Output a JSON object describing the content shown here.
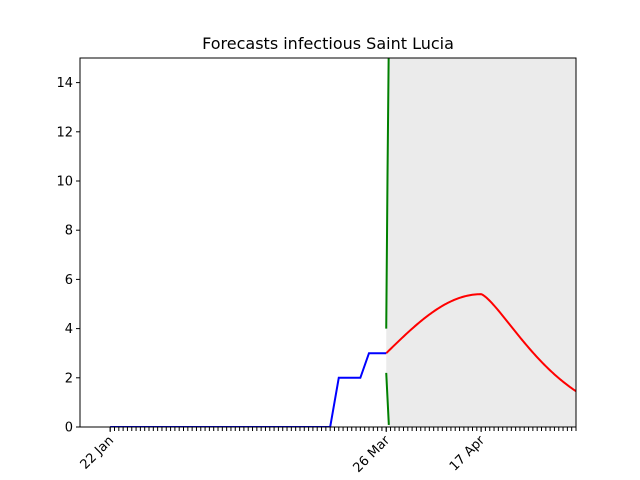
{
  "chart_data": {
    "type": "line",
    "title": "Forecasts infectious Saint Lucia",
    "xlabel": "",
    "ylabel": "",
    "ylim": [
      0,
      15
    ],
    "xlim_days": [
      -7,
      108
    ],
    "yticks": [
      0,
      2,
      4,
      6,
      8,
      10,
      12,
      14
    ],
    "xticks": [
      {
        "day": 0,
        "label": "22 Jan"
      },
      {
        "day": 64,
        "label": "26 Mar"
      },
      {
        "day": 86,
        "label": "17 Apr"
      }
    ],
    "grid": false,
    "legend": "none",
    "observed": {
      "color": "#0000ff",
      "x": [
        0,
        51,
        53,
        58,
        60,
        64
      ],
      "y": [
        0,
        0,
        2,
        2,
        3,
        3
      ]
    },
    "forecast_start_day": 64,
    "forecast_end_day": 185,
    "forecast_peak": {
      "day": 86,
      "value": 5.4
    },
    "forecast_color": "#ff0000",
    "band_color": "#008000",
    "band_fill": "#ebebeb"
  }
}
